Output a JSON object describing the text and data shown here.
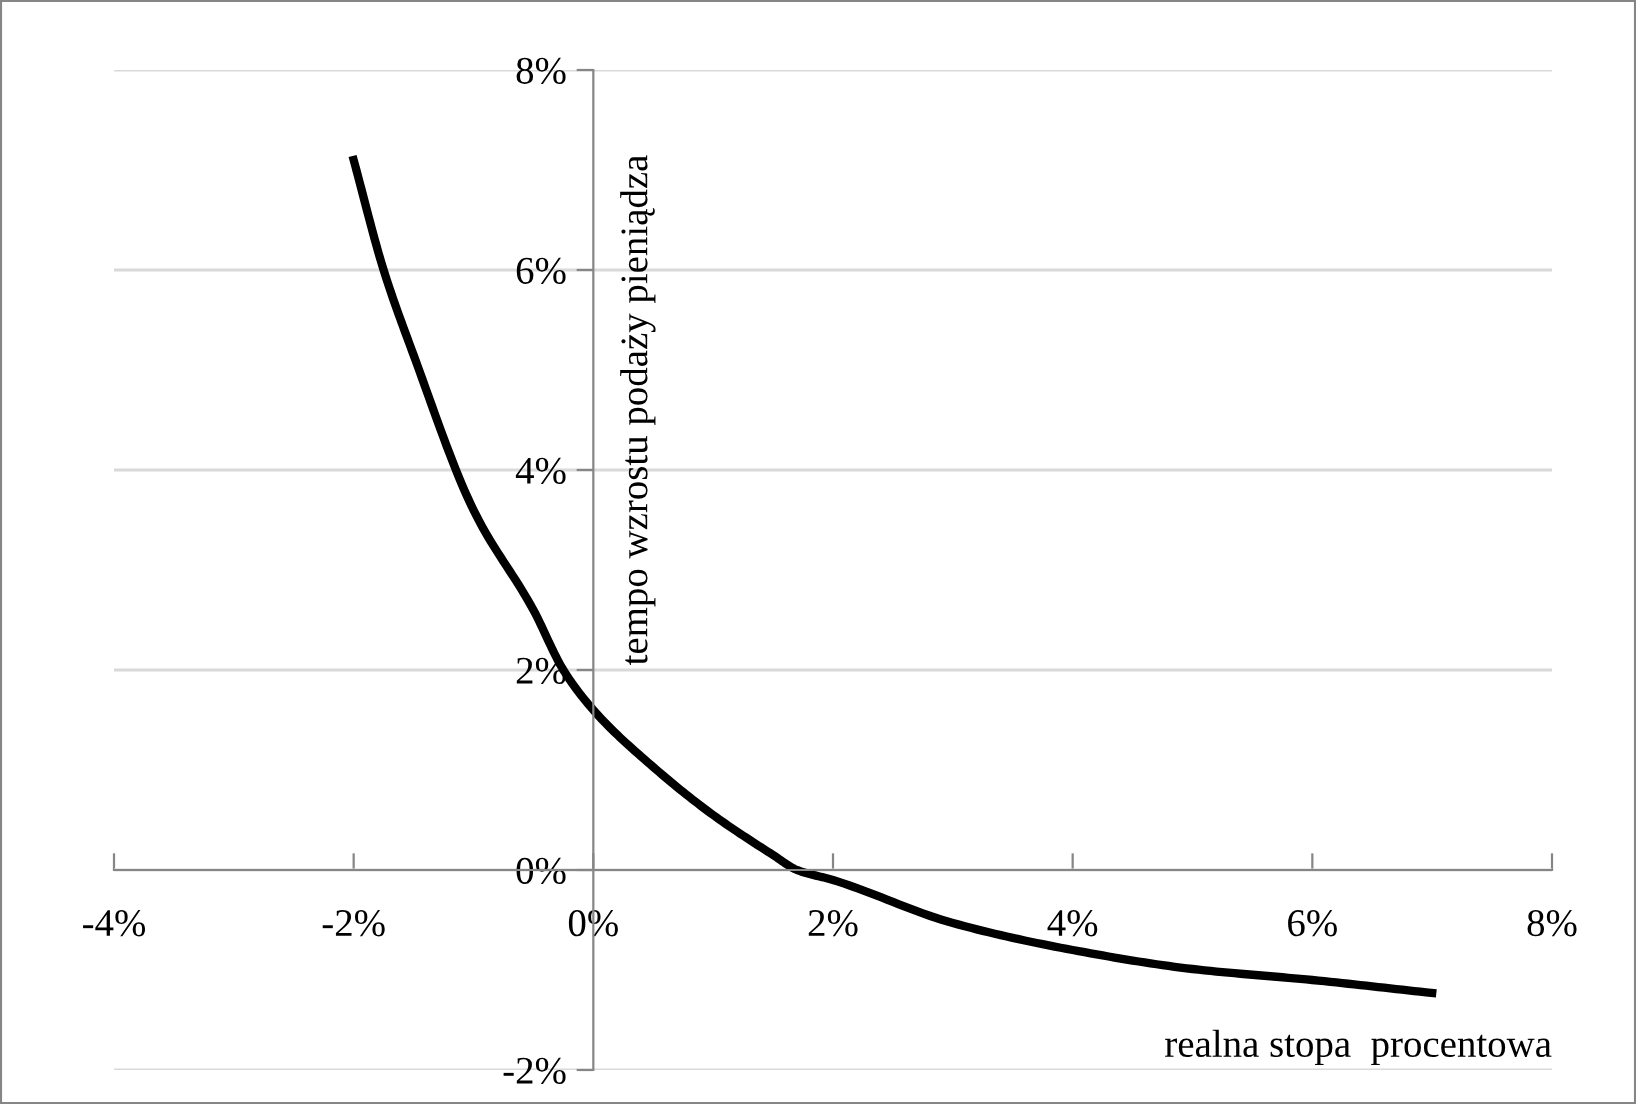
{
  "chart_data": {
    "type": "line",
    "xlabel": "realna stopa  procentowa",
    "ylabel": "tempo wzrostu podaży pieniądza",
    "x": [
      -2,
      -1.75,
      -1.5,
      -1,
      -0.5,
      -0.25,
      0,
      0.5,
      1,
      1.5,
      1.7,
      2,
      3,
      4,
      5,
      6,
      7
    ],
    "series": [
      {
        "color": "#000000",
        "values": [
          7.1,
          6.0,
          5.15,
          3.6,
          2.6,
          2.0,
          1.6,
          1.03,
          0.55,
          0.15,
          0,
          -0.1,
          -0.53,
          -0.8,
          -0.99,
          -1.1,
          -1.23
        ]
      }
    ],
    "xlim": [
      -4,
      8
    ],
    "ylim": [
      -2,
      8
    ],
    "xticks": [
      {
        "value": -4,
        "label": "-4%"
      },
      {
        "value": -2,
        "label": "-2%"
      },
      {
        "value": 0,
        "label": "0%"
      },
      {
        "value": 2,
        "label": "2%"
      },
      {
        "value": 4,
        "label": "4%"
      },
      {
        "value": 6,
        "label": "6%"
      },
      {
        "value": 8,
        "label": "8%"
      }
    ],
    "yticks": [
      {
        "value": -2,
        "label": "-2%"
      },
      {
        "value": 0,
        "label": "0%"
      },
      {
        "value": 2,
        "label": "2%"
      },
      {
        "value": 4,
        "label": "4%"
      },
      {
        "value": 6,
        "label": "6%"
      },
      {
        "value": 8,
        "label": "8%"
      }
    ],
    "grid": "y",
    "marker": "none",
    "line_style": "solid"
  }
}
